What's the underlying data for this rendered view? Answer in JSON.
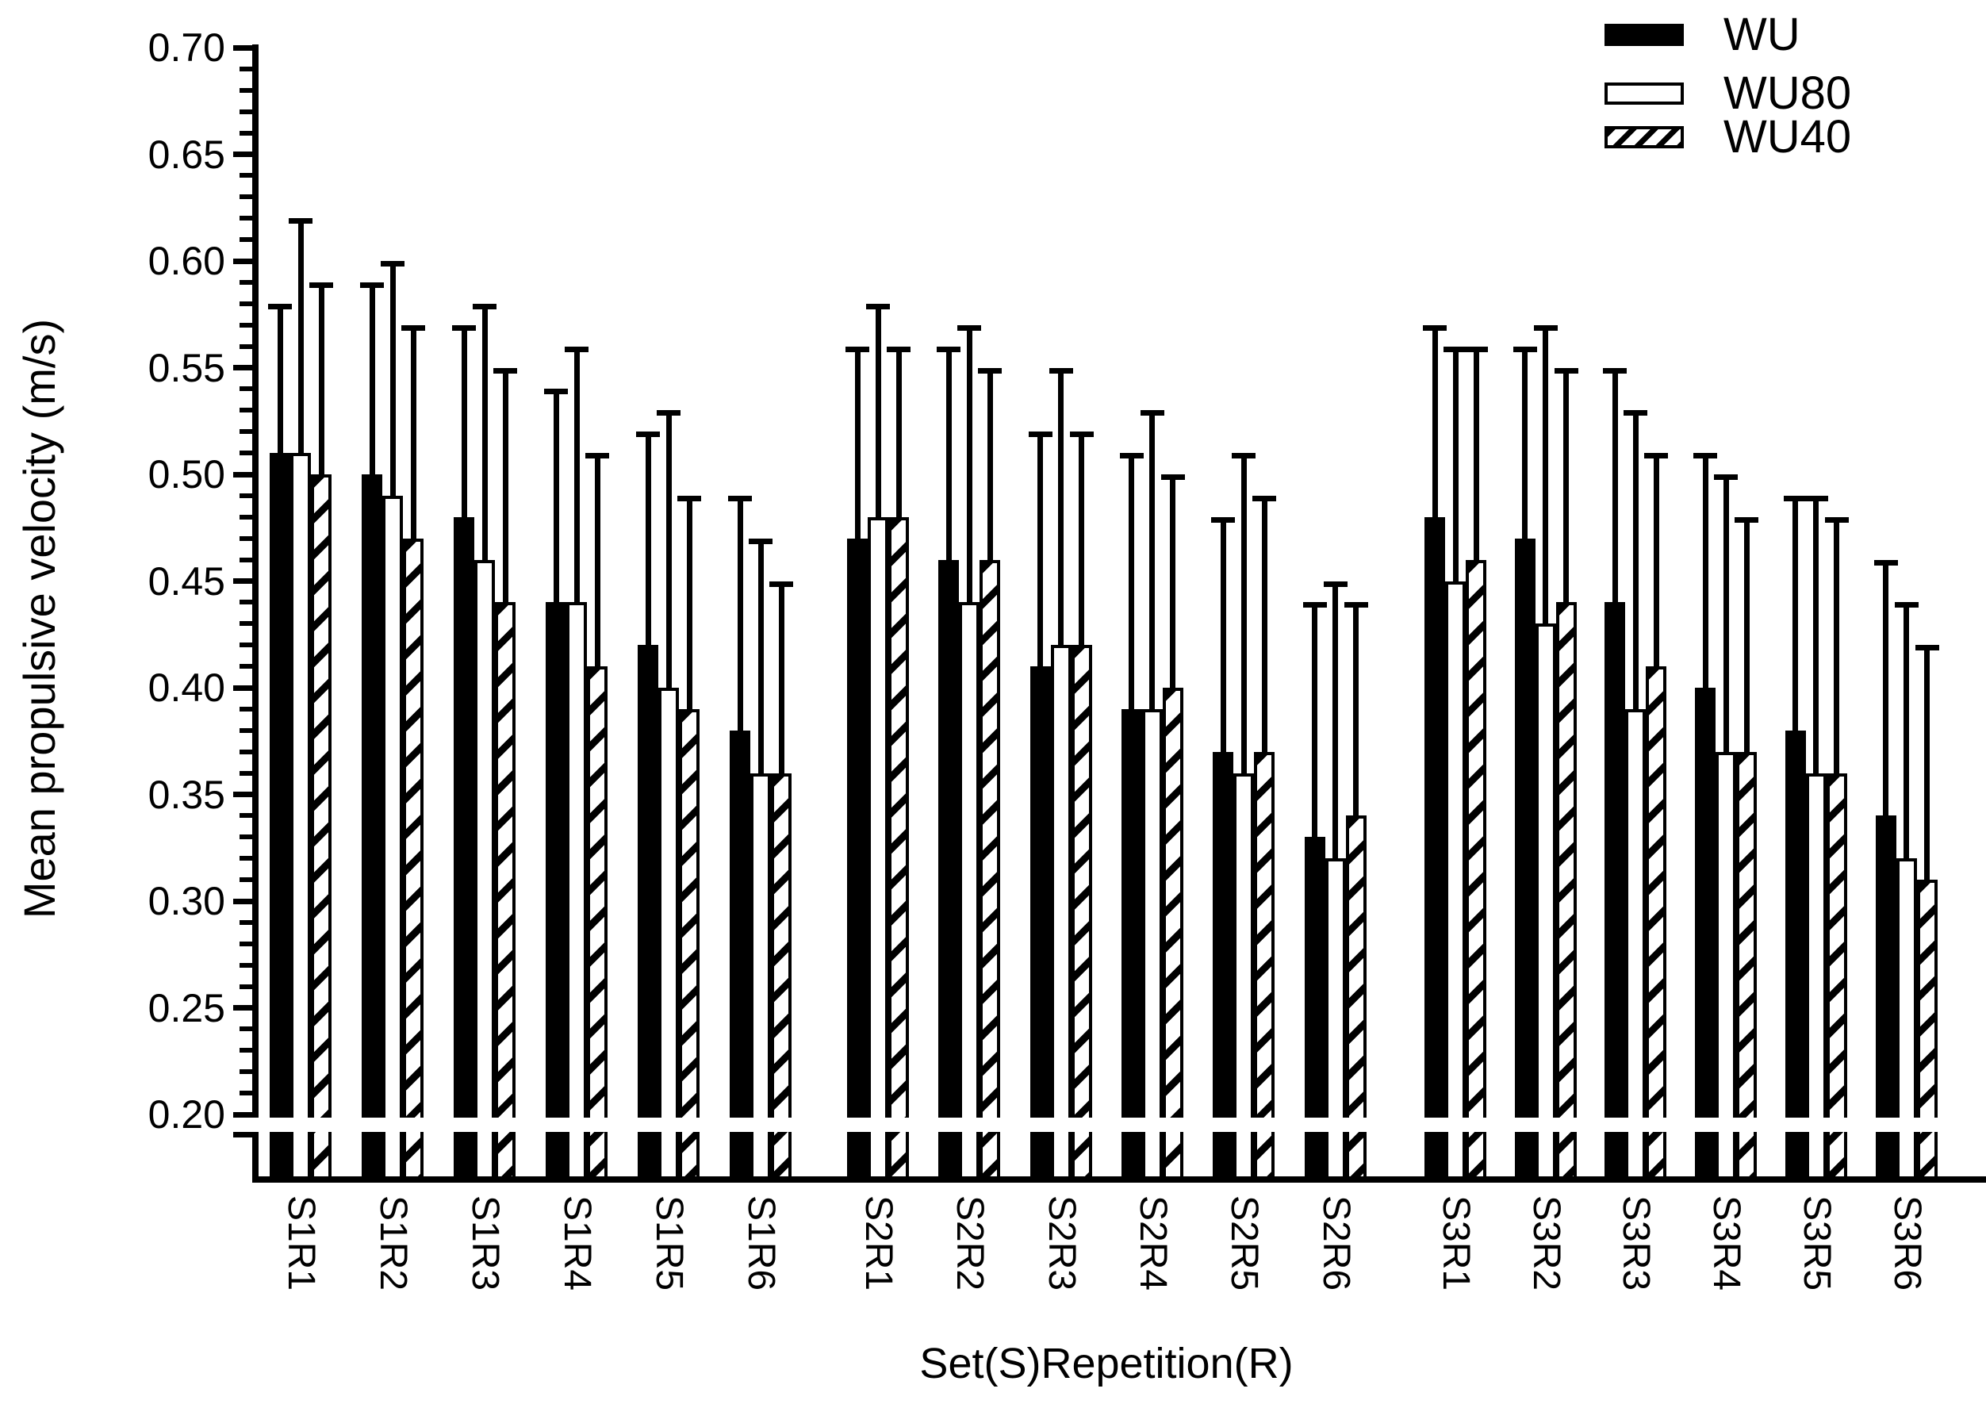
{
  "figure": {
    "background": "#ffffff",
    "foreground": "#000000"
  },
  "chart_data": {
    "type": "bar",
    "title": "",
    "xlabel": "Set(S)Repetition(R)",
    "ylabel": "Mean propulsive velocity (m/s)",
    "ylim": [
      0.2,
      0.7
    ],
    "ytick_major_step": 0.05,
    "ytick_minor_step": 0.01,
    "ytick_labels": [
      "0.20",
      "0.25",
      "0.30",
      "0.35",
      "0.40",
      "0.45",
      "0.50",
      "0.55",
      "0.60",
      "0.65",
      "0.70"
    ],
    "axis_break_below": 0.2,
    "grid": false,
    "legend_position": "top-right",
    "error_bars": "upper-only",
    "categories": [
      "S1R1",
      "S1R2",
      "S1R3",
      "S1R4",
      "S1R5",
      "S1R6",
      "S2R1",
      "S2R2",
      "S2R3",
      "S2R4",
      "S2R5",
      "S2R6",
      "S3R1",
      "S3R2",
      "S3R3",
      "S3R4",
      "S3R5",
      "S3R6"
    ],
    "groups_per_set": 6,
    "series": [
      {
        "name": "WU",
        "pattern": "solid-black",
        "values": [
          0.51,
          0.5,
          0.48,
          0.44,
          0.42,
          0.38,
          0.47,
          0.46,
          0.41,
          0.39,
          0.37,
          0.33,
          0.48,
          0.47,
          0.44,
          0.4,
          0.38,
          0.34
        ],
        "error_tops": [
          0.58,
          0.59,
          0.57,
          0.54,
          0.52,
          0.49,
          0.56,
          0.56,
          0.52,
          0.51,
          0.48,
          0.44,
          0.57,
          0.56,
          0.55,
          0.51,
          0.49,
          0.46
        ]
      },
      {
        "name": "WU80",
        "pattern": "open-white",
        "values": [
          0.51,
          0.49,
          0.46,
          0.44,
          0.4,
          0.36,
          0.48,
          0.44,
          0.42,
          0.39,
          0.36,
          0.32,
          0.45,
          0.43,
          0.39,
          0.37,
          0.36,
          0.32
        ],
        "error_tops": [
          0.62,
          0.6,
          0.58,
          0.56,
          0.53,
          0.47,
          0.58,
          0.57,
          0.55,
          0.53,
          0.51,
          0.45,
          0.56,
          0.57,
          0.53,
          0.5,
          0.49,
          0.44
        ]
      },
      {
        "name": "WU40",
        "pattern": "hatched",
        "values": [
          0.5,
          0.47,
          0.44,
          0.41,
          0.39,
          0.36,
          0.48,
          0.46,
          0.42,
          0.4,
          0.37,
          0.34,
          0.46,
          0.44,
          0.41,
          0.37,
          0.36,
          0.31
        ],
        "error_tops": [
          0.59,
          0.57,
          0.55,
          0.51,
          0.49,
          0.45,
          0.56,
          0.55,
          0.52,
          0.5,
          0.49,
          0.44,
          0.56,
          0.55,
          0.51,
          0.48,
          0.48,
          0.42
        ]
      }
    ]
  }
}
